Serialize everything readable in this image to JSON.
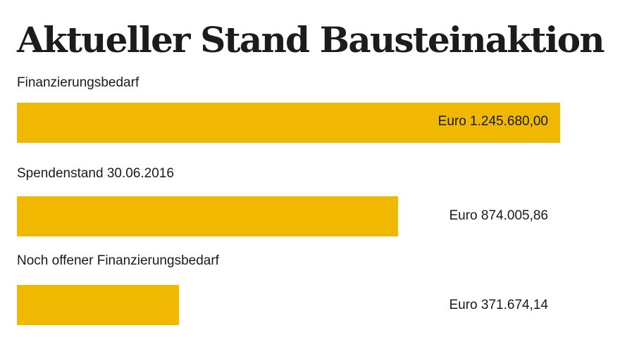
{
  "title": "Aktueller Stand Bausteinaktion",
  "colors": {
    "bar": "#f0b800",
    "background": "#ffffff",
    "text": "#1a1a1a"
  },
  "chart_data": {
    "type": "bar",
    "orientation": "horizontal",
    "title": "Aktueller Stand Bausteinaktion",
    "categories": [
      "Finanzierungsbedarf",
      "Spendenstand 30.06.2016",
      "Noch offener Finanzierungsbedarf"
    ],
    "values": [
      1245680.0,
      874005.86,
      371674.14
    ],
    "value_labels": [
      "Euro 1.245.680,00",
      "Euro 874.005,86",
      "Euro 371.674,14"
    ],
    "xlim": [
      0,
      1245680.0
    ],
    "grid": false,
    "legend": "none"
  }
}
